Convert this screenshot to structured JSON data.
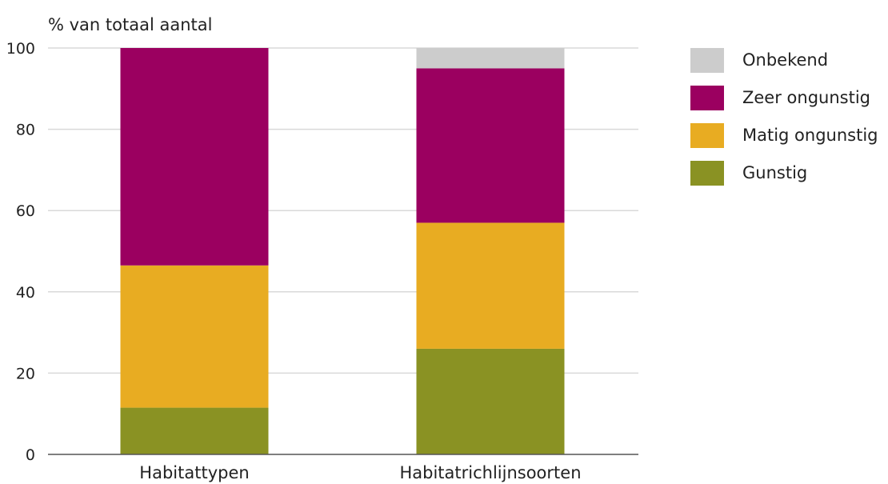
{
  "chart_data": {
    "type": "bar",
    "stacked": true,
    "ylabel": "% van totaal aantal",
    "ylim": [
      0,
      100
    ],
    "yticks": [
      0,
      20,
      40,
      60,
      80,
      100
    ],
    "grid": true,
    "legend_position": "right",
    "categories": [
      "Habitattypen",
      "Habitatrichlijnsoorten"
    ],
    "series": [
      {
        "name": "Gunstig",
        "color": "#8a9223",
        "values": [
          11.5,
          26
        ]
      },
      {
        "name": "Matig ongunstig",
        "color": "#e8ac22",
        "values": [
          35,
          31
        ]
      },
      {
        "name": "Zeer ongunstig",
        "color": "#9b0060",
        "values": [
          53.5,
          38
        ]
      },
      {
        "name": "Onbekend",
        "color": "#cccccc",
        "values": [
          0,
          5
        ]
      }
    ],
    "legend_order": [
      "Onbekend",
      "Zeer ongunstig",
      "Matig ongunstig",
      "Gunstig"
    ]
  }
}
